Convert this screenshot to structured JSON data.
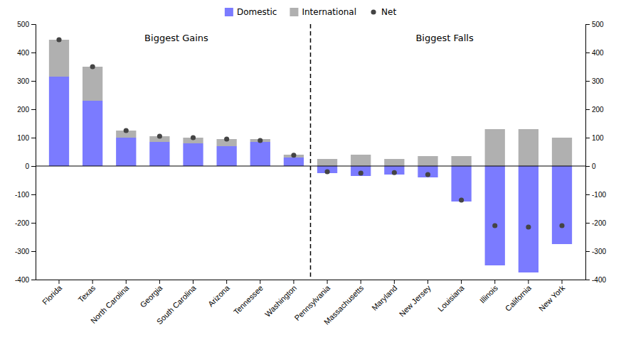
{
  "chart_data": {
    "type": "bar",
    "stacked": true,
    "categories": [
      "Florida",
      "Texas",
      "North Carolina",
      "Georgia",
      "South Carolina",
      "Arizona",
      "Tennessee",
      "Washington",
      "Pennsylvania",
      "Massachusetts",
      "Maryland",
      "New Jersey",
      "Louisiana",
      "Illinois",
      "California",
      "New York"
    ],
    "series": [
      {
        "name": "Domestic",
        "color": "#7b7bff",
        "values": [
          315,
          230,
          100,
          85,
          80,
          70,
          85,
          30,
          -25,
          -35,
          -30,
          -40,
          -125,
          -350,
          -375,
          -275
        ]
      },
      {
        "name": "International",
        "color": "#b0b0b0",
        "values": [
          130,
          120,
          25,
          20,
          20,
          25,
          10,
          10,
          25,
          40,
          25,
          35,
          35,
          130,
          130,
          100
        ]
      },
      {
        "name": "Net",
        "type": "scatter",
        "marker": "circle",
        "color": "#444444",
        "values": [
          445,
          350,
          125,
          105,
          100,
          95,
          90,
          38,
          -20,
          -25,
          -23,
          -30,
          -120,
          -210,
          -215,
          -210
        ]
      }
    ],
    "ylim": [
      -400,
      500
    ],
    "yticks": [
      -400,
      -300,
      -200,
      -100,
      0,
      100,
      200,
      300,
      400,
      500
    ],
    "y2lim": [
      -400,
      500
    ],
    "y2ticks": [
      -400,
      -300,
      -200,
      -100,
      0,
      100,
      200,
      300,
      400,
      500
    ],
    "annotations": [
      {
        "text": "Biggest Gains",
        "from": "Florida",
        "to": "Washington"
      },
      {
        "text": "Biggest Falls",
        "from": "Pennsylvania",
        "to": "New York"
      }
    ],
    "legend": "top"
  }
}
